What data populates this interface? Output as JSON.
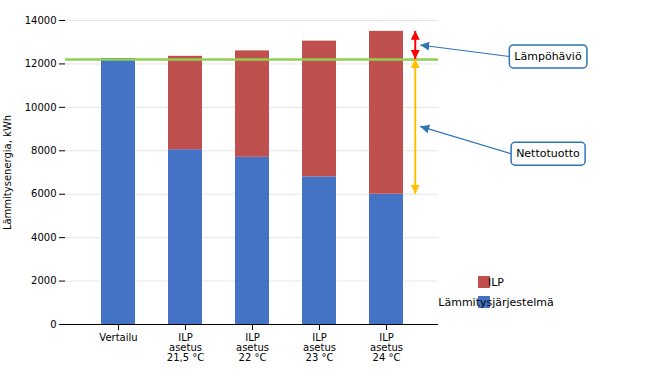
{
  "chart_data": {
    "type": "bar",
    "stacked": true,
    "categories": [
      "Vertailu",
      "ILP\nasetus\n21,5 °C",
      "ILP\nasetus\n22 °C",
      "ILP\nasetus\n23 °C",
      "ILP\nasetus\n24 °C"
    ],
    "series": [
      {
        "name": "Lämmitysjärjestelmä",
        "color": "#4472C4",
        "values": [
          12250,
          8050,
          7700,
          6800,
          6000
        ]
      },
      {
        "name": "ILP",
        "color": "#C0504D",
        "values": [
          0,
          4300,
          4900,
          6250,
          7500
        ]
      }
    ],
    "ylabel": "Lämmitysenergia, kWh",
    "ylim": [
      0,
      14000
    ],
    "yticks": [
      0,
      2000,
      4000,
      6000,
      8000,
      10000,
      12000,
      14000
    ],
    "grid": true,
    "legend": "right",
    "reference_line": {
      "y": 12200,
      "color": "#92D050"
    },
    "annotations": [
      {
        "text": "Lämpöhäviö",
        "from": 13500,
        "to": 12200,
        "color": "#FF0000",
        "box_color": "#2E75B6"
      },
      {
        "text": "Nettotuotto",
        "from": 12200,
        "to": 6000,
        "color": "#FFC000",
        "box_color": "#2E75B6"
      }
    ]
  }
}
